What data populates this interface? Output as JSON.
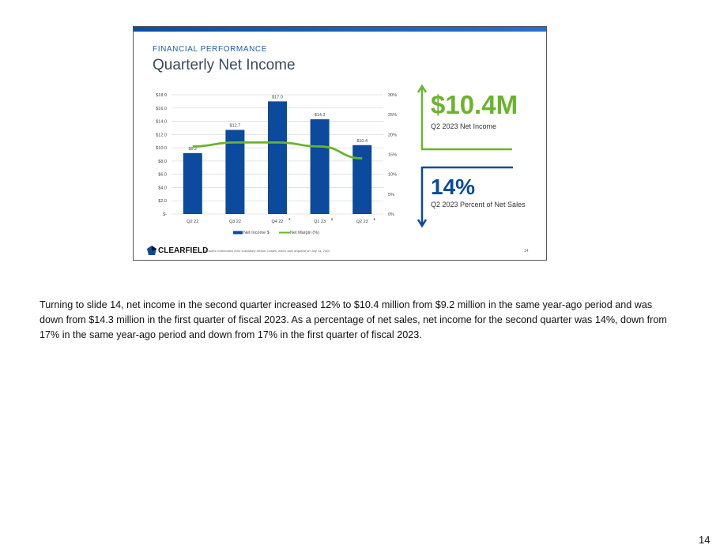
{
  "slide": {
    "kicker": "FINANCIAL PERFORMANCE",
    "title": "Quarterly Net Income",
    "highlight1": {
      "value": "$10.4M",
      "label": "Q2 2023 Net Income"
    },
    "highlight2": {
      "value": "14%",
      "label": "Q2 2023 Percent of Net Sales"
    },
    "logo": "CLEARFIELD",
    "footnote": "*Includes contribution from subsidiary Nestor Cables, which was acquired on July 14, 2022",
    "slide_number": "14",
    "colors": {
      "bar": "#0b4a9c",
      "line": "#6ab42d"
    }
  },
  "chart_data": {
    "type": "bar",
    "categories": [
      "Q2 22",
      "Q3 22",
      "Q4 22",
      "Q1 23",
      "Q2 23"
    ],
    "category_marks": [
      "",
      "",
      "*",
      "*",
      "*"
    ],
    "series": [
      {
        "name": "Net Income $",
        "type": "bar",
        "axis": "left",
        "values": [
          9.2,
          12.7,
          17.0,
          14.3,
          10.4
        ],
        "labels": [
          "$9.2",
          "$12.7",
          "$17.0",
          "$14.3",
          "$10.4"
        ]
      },
      {
        "name": "Net Margin (%)",
        "type": "line",
        "axis": "right",
        "values": [
          17,
          18,
          18,
          17,
          14
        ]
      }
    ],
    "y_left": {
      "ylim": [
        0,
        18
      ],
      "ticks": [
        "$-",
        "$2.0",
        "$4.0",
        "$6.0",
        "$8.0",
        "$10.0",
        "$12.0",
        "$14.0",
        "$16.0",
        "$18.0"
      ]
    },
    "y_right": {
      "ylim": [
        0,
        30
      ],
      "ticks": [
        "0%",
        "5%",
        "10%",
        "15%",
        "20%",
        "25%",
        "30%"
      ]
    },
    "grid": true,
    "legend": "bottom"
  },
  "transcript": "Turning to slide 14, net income in the second quarter increased 12% to $10.4 million from $9.2 million in the same year-ago period and was down from $14.3 million in the first quarter of fiscal 2023. As a percentage of net sales, net income for the second quarter was 14%, down from 17% in the same year-ago period and down from 17% in the first quarter of fiscal 2023.",
  "page_number": "14"
}
